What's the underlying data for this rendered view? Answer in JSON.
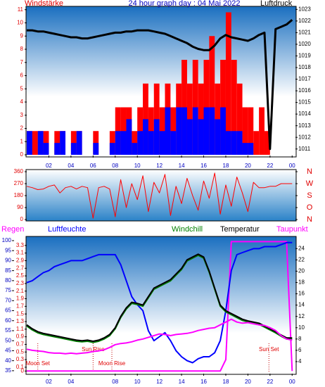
{
  "chart_data": [
    {
      "type": "bar",
      "title": "24 hour graph day : 04 Mai 2022",
      "ylabel": "Windstärke",
      "y2label": "Luftdruck",
      "x": [
        0,
        0.5,
        1,
        1.5,
        2,
        2.5,
        3,
        3.5,
        4,
        4.5,
        5,
        5.5,
        6,
        6.5,
        7,
        7.5,
        8,
        8.5,
        9,
        9.5,
        10,
        10.5,
        11,
        11.5,
        12,
        12.5,
        13,
        13.5,
        14,
        14.5,
        15,
        15.5,
        16,
        16.5,
        17,
        17.5,
        18,
        18.5,
        19,
        19.5,
        20,
        20.5,
        21,
        21.5,
        22,
        22.5,
        23,
        23.5,
        24
      ],
      "xlim": [
        0,
        24.3
      ],
      "xticks": [
        {
          "value": 2,
          "label": "02"
        },
        {
          "value": 4,
          "label": "04"
        },
        {
          "value": 6,
          "label": "06"
        },
        {
          "value": 8,
          "label": "08"
        },
        {
          "value": 10,
          "label": "10"
        },
        12,
        14,
        16,
        18,
        20,
        22,
        {
          "value": 24,
          "label": "00"
        }
      ],
      "ylim": [
        0,
        11.2
      ],
      "yticks": [
        0,
        1,
        2,
        3,
        4,
        5,
        6,
        7,
        8,
        9,
        10,
        11
      ],
      "y2lim": [
        1010.5,
        1023.2
      ],
      "y2ticks": [
        1011,
        1012,
        1013,
        1014,
        1015,
        1016,
        1017,
        1018,
        1019,
        1020,
        1021,
        1022,
        1023
      ],
      "series": [
        {
          "name": "Windstärke",
          "color": "#ff0000",
          "values": [
            1.8,
            1.8,
            1.8,
            1.8,
            0,
            1.8,
            1.8,
            0,
            1.8,
            1.8,
            0,
            0,
            1.8,
            0,
            0,
            1.8,
            3.6,
            3.6,
            3.6,
            1.8,
            3.6,
            5.4,
            3.6,
            5.4,
            3.6,
            5.4,
            3.6,
            5.4,
            7.2,
            5.4,
            7.2,
            5.4,
            7.2,
            9,
            5.4,
            7.2,
            10.8,
            7.2,
            5.4,
            3.6,
            3.6,
            1.8,
            3.6,
            1.8,
            0,
            0,
            0,
            0,
            0
          ]
        },
        {
          "color": "#0000ff",
          "values": [
            1.8,
            0,
            1.8,
            0.9,
            0,
            0.9,
            1.8,
            0,
            0.9,
            1.8,
            0,
            0,
            0.9,
            0,
            0,
            0.9,
            1.8,
            1.8,
            2.7,
            0.9,
            1.8,
            2.7,
            1.8,
            2.7,
            1.8,
            3.6,
            1.8,
            3.6,
            3.6,
            2.7,
            3.6,
            2.7,
            3.6,
            3.6,
            2.7,
            3.6,
            1.8,
            1.8,
            1.8,
            0.9,
            0.9,
            0,
            0,
            0,
            0,
            0,
            0,
            0,
            0
          ]
        },
        {
          "name": "Luftdruck",
          "type": "line",
          "axis": "y2",
          "color": "#000000",
          "values": [
            1021.2,
            1021.2,
            1021.1,
            1021.1,
            1021.0,
            1020.9,
            1020.8,
            1020.7,
            1020.6,
            1020.6,
            1020.5,
            1020.5,
            1020.6,
            1020.7,
            1020.8,
            1020.9,
            1021.0,
            1021.0,
            1021.1,
            1021.1,
            1021.2,
            1021.2,
            1021.2,
            1021.1,
            1021.0,
            1020.9,
            1020.7,
            1020.5,
            1020.3,
            1020.1,
            1019.8,
            1019.6,
            1019.5,
            1019.5,
            1019.9,
            1020.5,
            1020.8,
            1020.6,
            1020.5,
            1020.4,
            1020.3,
            1020.5,
            1020.8,
            1021.0,
            1011.0,
            1021.3,
            1021.5,
            1021.7,
            1022.1
          ]
        }
      ]
    },
    {
      "type": "line",
      "x": [
        0,
        0.5,
        1,
        1.5,
        2,
        2.5,
        3,
        3.5,
        4,
        4.5,
        5,
        5.5,
        6,
        6.5,
        7,
        7.5,
        8,
        8.5,
        9,
        9.5,
        10,
        10.5,
        11,
        11.5,
        12,
        12.5,
        13,
        13.5,
        14,
        14.5,
        15,
        15.5,
        16,
        16.5,
        17,
        17.5,
        18,
        18.5,
        19,
        19.5,
        20,
        20.5,
        21,
        21.5,
        22,
        22.5,
        23,
        23.5,
        24
      ],
      "xlim": [
        0,
        24.3
      ],
      "ylim": [
        0,
        360
      ],
      "yticks": [
        0,
        90,
        180,
        270,
        360
      ],
      "y2lim": [
        0,
        360
      ],
      "y2ticks": [
        {
          "value": 360,
          "label": "N"
        },
        {
          "value": 270,
          "label": "W"
        },
        {
          "value": 180,
          "label": "S"
        },
        {
          "value": 90,
          "label": "O"
        },
        {
          "value": 0,
          "label": "N"
        }
      ],
      "series": [
        {
          "color": "#ff0000",
          "values": [
            250,
            240,
            225,
            230,
            250,
            260,
            200,
            240,
            250,
            230,
            250,
            240,
            10,
            240,
            250,
            230,
            20,
            300,
            90,
            270,
            150,
            330,
            60,
            280,
            200,
            340,
            30,
            250,
            120,
            310,
            180,
            70,
            290,
            160,
            350,
            40,
            260,
            100,
            320,
            200,
            60,
            280,
            240,
            240,
            250,
            250,
            270,
            270,
            270
          ]
        }
      ]
    },
    {
      "type": "line",
      "x": [
        0,
        0.5,
        1,
        1.5,
        2,
        2.5,
        3,
        3.5,
        4,
        4.5,
        5,
        5.5,
        6,
        6.5,
        7,
        7.5,
        8,
        8.5,
        9,
        9.5,
        10,
        10.5,
        11,
        11.5,
        12,
        12.5,
        13,
        13.5,
        14,
        14.5,
        15,
        15.5,
        16,
        16.5,
        17,
        17.5,
        18,
        18.5,
        19,
        19.5,
        20,
        20.5,
        21,
        21.5,
        22,
        22.5,
        23,
        23.5,
        24
      ],
      "xlim": [
        0,
        24.3
      ],
      "xticks": [
        {
          "value": 2,
          "label": "02"
        },
        {
          "value": 4,
          "label": "04"
        },
        {
          "value": 8,
          "label": "08"
        },
        {
          "value": 10,
          "label": "10"
        },
        12,
        14,
        16,
        18,
        20,
        22,
        {
          "value": 24,
          "label": "00"
        }
      ],
      "ylim": [
        33.9,
        101.4
      ],
      "yticks": [
        35,
        40,
        45,
        50,
        55,
        60,
        65,
        70,
        75,
        80,
        85,
        90,
        95,
        100
      ],
      "y2lim": [
        2,
        25.9
      ],
      "y2ticks": [
        4,
        6,
        8,
        10,
        12,
        14,
        16,
        18,
        20,
        22,
        24
      ],
      "y3lim": [
        -0.05,
        3.5
      ],
      "y3ticks": [
        0,
        0.1,
        0.3,
        0.5,
        0.7,
        0.9,
        1.1,
        1.3,
        1.5,
        1.7,
        1.9,
        2.1,
        2.3,
        2.5,
        2.7,
        2.9,
        3.1,
        3.3
      ],
      "annotations": [
        {
          "text": "Moon Set",
          "x": 1
        },
        {
          "text": "Sun Rise",
          "x": 6
        },
        {
          "text": "Moon Rise",
          "x": 7.7
        },
        {
          "text": "Sun Set",
          "x": 21.9
        }
      ],
      "series": [
        {
          "name": "Regen",
          "axis": "y3",
          "color": "#ff00ff",
          "values": [
            0,
            0,
            0,
            0,
            0,
            0,
            0,
            0,
            0,
            0,
            0,
            0,
            0,
            0,
            0,
            0,
            0,
            0,
            0,
            0,
            0,
            0,
            0,
            0,
            0,
            0,
            0,
            0,
            0,
            0,
            0,
            0,
            0,
            0,
            0,
            0,
            0.3,
            3.4,
            3.4,
            3.4,
            3.4,
            3.4,
            3.4,
            3.4,
            3.4,
            3.4,
            3.4,
            3.4,
            0
          ]
        },
        {
          "name": "Luftfeuchte",
          "color": "#0000ff",
          "values": [
            79,
            80,
            82,
            84,
            85,
            87,
            88,
            89,
            90,
            90,
            90,
            91,
            92,
            93,
            93,
            93,
            93,
            88,
            80,
            72,
            68,
            65,
            55,
            50,
            52,
            54,
            50,
            45,
            42,
            40,
            39,
            41,
            42,
            42,
            44,
            50,
            65,
            85,
            93,
            94,
            95,
            96,
            96,
            97,
            97,
            97,
            98,
            99,
            99
          ]
        },
        {
          "name": "Windchill",
          "axis": "y2",
          "color": "#008000",
          "values": [
            10.3,
            9.6,
            9.1,
            8.8,
            8.6,
            8.4,
            8.2,
            8,
            7.8,
            7.6,
            7.5,
            7.6,
            7.4,
            7.6,
            8,
            8.6,
            9.8,
            11.8,
            13.3,
            14.3,
            14.1,
            13.8,
            15.3,
            16.8,
            17.3,
            17.8,
            18.3,
            19.3,
            20.3,
            21.8,
            22.3,
            22.8,
            22.3,
            19.8,
            16.8,
            13.8,
            12.8,
            12.3,
            11.8,
            11.3,
            11,
            10.8,
            10.6,
            10.1,
            9.6,
            9.1,
            8.5,
            8,
            8
          ]
        },
        {
          "name": "Temperatur",
          "axis": "y2",
          "color": "#000000",
          "values": [
            10.5,
            9.8,
            9.3,
            9,
            8.8,
            8.6,
            8.4,
            8.2,
            8,
            7.8,
            7.7,
            7.8,
            7.6,
            7.8,
            8.2,
            8.8,
            10,
            12,
            13.5,
            14.5,
            14.3,
            14,
            15.5,
            17,
            17.5,
            18,
            18.5,
            19.5,
            20.5,
            22,
            22.5,
            23,
            22.5,
            20,
            17,
            14,
            13,
            12.5,
            12,
            11.5,
            11.2,
            11,
            10.8,
            10.3,
            9.8,
            9.3,
            8.7,
            8.2,
            8.2
          ]
        },
        {
          "name": "Taupunkt",
          "axis": "y2",
          "color": "#ff00ff",
          "values": [
            6.2,
            6,
            5.9,
            5.8,
            5.6,
            5.5,
            5.5,
            5.4,
            5.5,
            5.4,
            5.5,
            5.6,
            5.8,
            5.9,
            6.1,
            6.5,
            7,
            7.2,
            7.3,
            7.5,
            7.8,
            8,
            8.3,
            8.6,
            8.9,
            8.8,
            8.6,
            8.8,
            8.9,
            9,
            9.2,
            9.5,
            9.7,
            9.9,
            10,
            10.5,
            11,
            11.5,
            11,
            10.8,
            10.9,
            10.7,
            10.5,
            10.4,
            10,
            9.5,
            8.6,
            8,
            7.8
          ]
        }
      ]
    }
  ]
}
